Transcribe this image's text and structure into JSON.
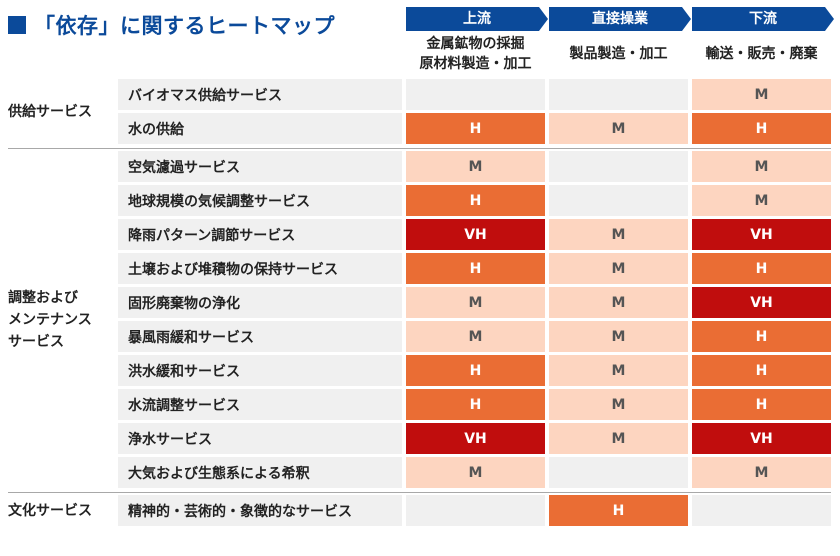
{
  "chart_data": {
    "type": "heatmap",
    "title": "「依存」に関するヒートマップ",
    "columns": [
      {
        "stage": "上流",
        "lines": [
          "金属鉱物の採掘",
          "原材料製造・加工"
        ]
      },
      {
        "stage": "直接操業",
        "lines": [
          "製品製造・加工"
        ]
      },
      {
        "stage": "下流",
        "lines": [
          "輸送・販売・廃棄"
        ]
      }
    ],
    "groups": [
      {
        "lines": [
          "供給サービス"
        ],
        "rows": [
          {
            "label": "バイオマス供給サービス",
            "values": [
              "",
              "",
              "M"
            ]
          },
          {
            "label": "水の供給",
            "values": [
              "H",
              "M",
              "H"
            ]
          }
        ]
      },
      {
        "lines": [
          "調整および",
          "メンテナンス",
          "サービス"
        ],
        "rows": [
          {
            "label": "空気濾過サービス",
            "values": [
              "M",
              "",
              "M"
            ]
          },
          {
            "label": "地球規模の気候調整サービス",
            "values": [
              "H",
              "",
              "M"
            ]
          },
          {
            "label": "降雨パターン調節サービス",
            "values": [
              "VH",
              "M",
              "VH"
            ]
          },
          {
            "label": "土壌および堆積物の保持サービス",
            "values": [
              "H",
              "M",
              "H"
            ]
          },
          {
            "label": "固形廃棄物の浄化",
            "values": [
              "M",
              "M",
              "VH"
            ]
          },
          {
            "label": "暴風雨緩和サービス",
            "values": [
              "M",
              "M",
              "H"
            ]
          },
          {
            "label": "洪水緩和サービス",
            "values": [
              "H",
              "M",
              "H"
            ]
          },
          {
            "label": "水流調整サービス",
            "values": [
              "H",
              "M",
              "H"
            ]
          },
          {
            "label": "浄水サービス",
            "values": [
              "VH",
              "M",
              "VH"
            ]
          },
          {
            "label": "大気および生態系による希釈",
            "values": [
              "M",
              "",
              "M"
            ]
          }
        ]
      },
      {
        "lines": [
          "文化サービス"
        ],
        "rows": [
          {
            "label": "精神的・芸術的・象徴的なサービス",
            "values": [
              "",
              "H",
              ""
            ]
          }
        ]
      }
    ],
    "levels": [
      "M",
      "H",
      "VH"
    ],
    "colors": {
      "VH": {
        "bg": "#c00d0d",
        "fg": "#ffffff"
      },
      "H": {
        "bg": "#ea6d34",
        "fg": "#ffffff"
      },
      "M": {
        "bg": "#fdd5c0",
        "fg": "#555555"
      },
      "none": {
        "bg": "#f0f0f0",
        "fg": "#555555"
      },
      "header": "#0b4a9a"
    }
  }
}
